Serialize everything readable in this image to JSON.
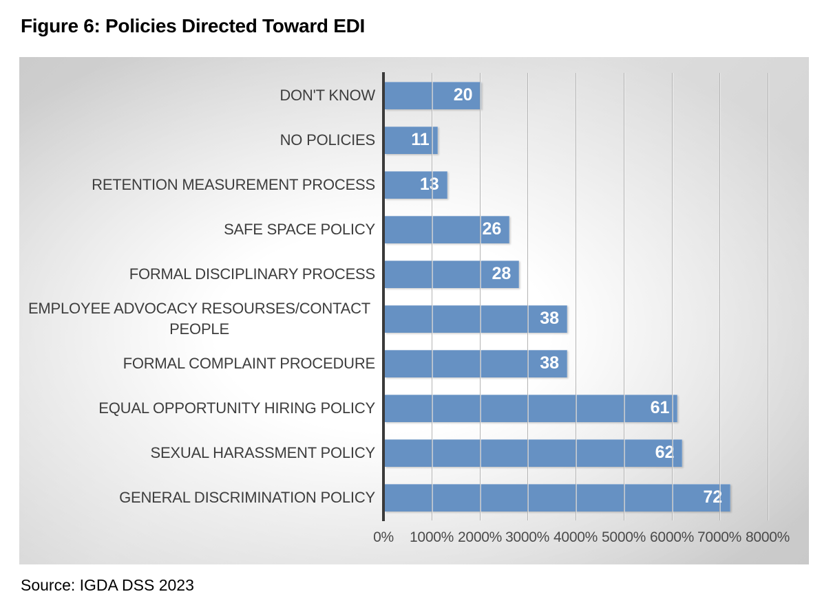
{
  "figure": {
    "title": "Figure 6: Policies Directed Toward EDI",
    "source": "Source: IGDA DSS 2023"
  },
  "chart_data": {
    "type": "bar",
    "orientation": "horizontal",
    "categories": [
      "DON'T KNOW",
      "NO POLICIES",
      "RETENTION MEASUREMENT PROCESS",
      "SAFE SPACE POLICY",
      "FORMAL DISCIPLINARY PROCESS",
      "EMPLOYEE ADVOCACY RESOURSES/CONTACT PEOPLE",
      "FORMAL COMPLAINT PROCEDURE",
      "EQUAL OPPORTUNITY HIRING POLICY",
      "SEXUAL HARASSMENT POLICY",
      "GENERAL DISCRIMINATION POLICY"
    ],
    "values": [
      20,
      11,
      13,
      26,
      28,
      38,
      38,
      61,
      62,
      72
    ],
    "x_tick_labels": [
      "0%",
      "1000%",
      "2000%",
      "3000%",
      "4000%",
      "5000%",
      "6000%",
      "7000%",
      "8000%"
    ],
    "xlim": [
      0,
      80
    ],
    "grid": true,
    "legend": false,
    "data_labels_position": "inside-end",
    "bar_color": "#6691c3",
    "data_label_color": "#ffffff",
    "category_label_color": "#3d3d3d",
    "tick_label_color": "#4a4a4a"
  }
}
